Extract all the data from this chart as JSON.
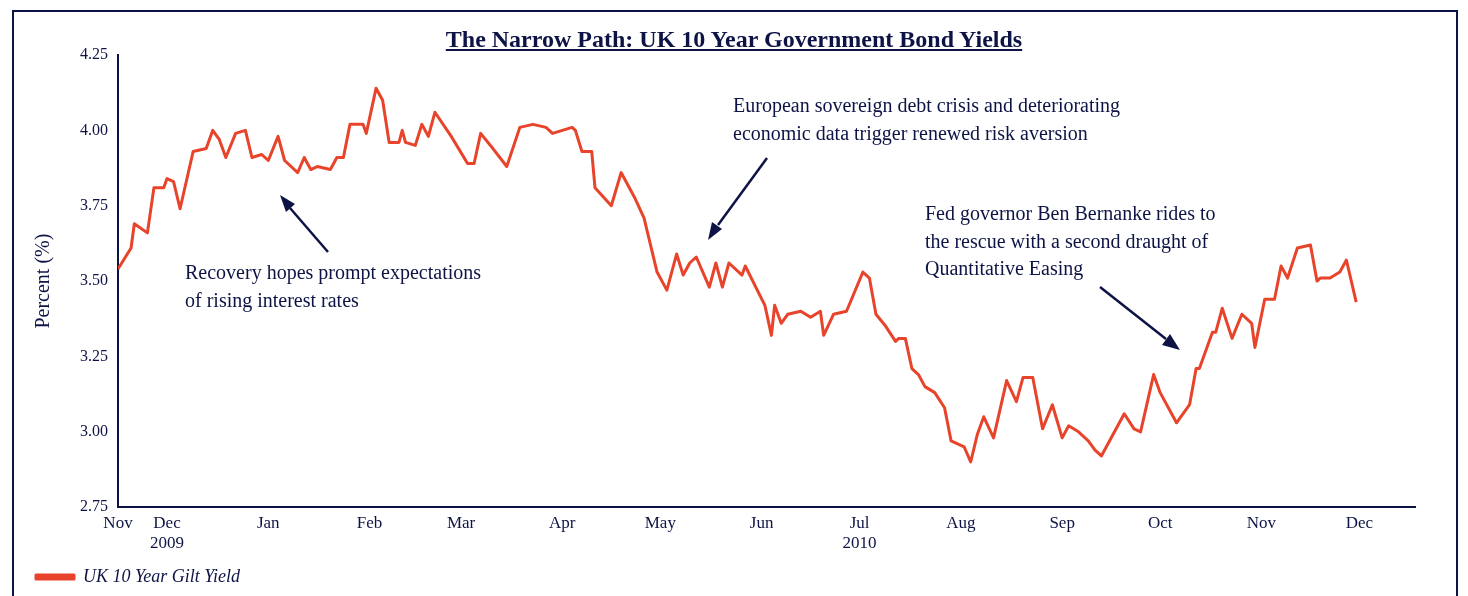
{
  "chart_data": {
    "type": "line",
    "title": "The Narrow Path: UK 10 Year Government Bond Yields",
    "ylabel": "Percent (%)",
    "xlim": [
      "2009-11-16",
      "2010-12-18"
    ],
    "xticks": [
      {
        "value": "2009-11-16",
        "label": "Nov"
      },
      {
        "value": "2009-12-01",
        "label": "Dec\n2009"
      },
      {
        "value": "2010-01-01",
        "label": "Jan"
      },
      {
        "value": "2010-02-01",
        "label": "Feb"
      },
      {
        "value": "2010-03-01",
        "label": "Mar"
      },
      {
        "value": "2010-04-01",
        "label": "Apr"
      },
      {
        "value": "2010-05-01",
        "label": "May"
      },
      {
        "value": "2010-06-01",
        "label": "Jun"
      },
      {
        "value": "2010-07-01",
        "label": "Jul\n2010"
      },
      {
        "value": "2010-08-01",
        "label": "Aug"
      },
      {
        "value": "2010-09-01",
        "label": "Sep"
      },
      {
        "value": "2010-10-01",
        "label": "Oct"
      },
      {
        "value": "2010-11-01",
        "label": "Nov"
      },
      {
        "value": "2010-12-01",
        "label": "Dec"
      }
    ],
    "ylim": [
      2.75,
      4.25
    ],
    "yticks": [
      {
        "value": 2.75,
        "label": "2.75"
      },
      {
        "value": 3,
        "label": "3.00"
      },
      {
        "value": 3.25,
        "label": "3.25"
      },
      {
        "value": 3.5,
        "label": "3.50"
      },
      {
        "value": 3.75,
        "label": "3.75"
      },
      {
        "value": 4,
        "label": "4.00"
      },
      {
        "value": 4.25,
        "label": "4.25"
      }
    ],
    "grid": false,
    "legend": "bottom left",
    "marker": "none",
    "line_style": "solid",
    "annotations": [
      "Recovery hopes prompt expectations\nof rising interest rates",
      "European sovereign debt crisis and deteriorating\neconomic data trigger renewed risk aversion",
      "Fed governor Ben Bernanke rides to\nthe rescue with a second draught of\nQuantitative Easing"
    ],
    "series": [
      {
        "name": "UK 10 Year Gilt Yield",
        "color": "#e8432b",
        "x": [
          "2009-11-16",
          "2009-11-20",
          "2009-11-21",
          "2009-11-25",
          "2009-11-27",
          "2009-11-30",
          "2009-12-01",
          "2009-12-03",
          "2009-12-05",
          "2009-12-09",
          "2009-12-13",
          "2009-12-15",
          "2009-12-17",
          "2009-12-19",
          "2009-12-22",
          "2009-12-25",
          "2009-12-27",
          "2009-12-30",
          "2010-01-01",
          "2010-01-04",
          "2010-01-06",
          "2010-01-10",
          "2010-01-12",
          "2010-01-14",
          "2010-01-16",
          "2010-01-20",
          "2010-01-22",
          "2010-01-24",
          "2010-01-26",
          "2010-01-30",
          "2010-01-31",
          "2010-02-03",
          "2010-02-05",
          "2010-02-07",
          "2010-02-10",
          "2010-02-11",
          "2010-02-12",
          "2010-02-15",
          "2010-02-17",
          "2010-02-19",
          "2010-02-21",
          "2010-02-26",
          "2010-03-03",
          "2010-03-05",
          "2010-03-07",
          "2010-03-10",
          "2010-03-15",
          "2010-03-19",
          "2010-03-23",
          "2010-03-27",
          "2010-03-29",
          "2010-04-01",
          "2010-04-04",
          "2010-04-05",
          "2010-04-07",
          "2010-04-10",
          "2010-04-11",
          "2010-04-16",
          "2010-04-19",
          "2010-04-23",
          "2010-04-26",
          "2010-04-30",
          "2010-05-03",
          "2010-05-06",
          "2010-05-08",
          "2010-05-10",
          "2010-05-12",
          "2010-05-16",
          "2010-05-18",
          "2010-05-20",
          "2010-05-22",
          "2010-05-26",
          "2010-05-27",
          "2010-06-02",
          "2010-06-04",
          "2010-06-05",
          "2010-06-07",
          "2010-06-09",
          "2010-06-13",
          "2010-06-16",
          "2010-06-19",
          "2010-06-20",
          "2010-06-23",
          "2010-06-27",
          "2010-07-02",
          "2010-07-04",
          "2010-07-06",
          "2010-07-09",
          "2010-07-12",
          "2010-07-13",
          "2010-07-15",
          "2010-07-17",
          "2010-07-19",
          "2010-07-21",
          "2010-07-24",
          "2010-07-27",
          "2010-07-29",
          "2010-08-02",
          "2010-08-04",
          "2010-08-06",
          "2010-08-08",
          "2010-08-11",
          "2010-08-15",
          "2010-08-18",
          "2010-08-20",
          "2010-08-23",
          "2010-08-26",
          "2010-08-29",
          "2010-09-01",
          "2010-09-03",
          "2010-09-06",
          "2010-09-09",
          "2010-09-11",
          "2010-09-13",
          "2010-09-20",
          "2010-09-23",
          "2010-09-25",
          "2010-09-29",
          "2010-10-01",
          "2010-10-06",
          "2010-10-10",
          "2010-10-12",
          "2010-10-13",
          "2010-10-17",
          "2010-10-18",
          "2010-10-20",
          "2010-10-23",
          "2010-10-26",
          "2010-10-29",
          "2010-10-30",
          "2010-11-02",
          "2010-11-05",
          "2010-11-07",
          "2010-11-09",
          "2010-11-12",
          "2010-11-16",
          "2010-11-18",
          "2010-11-19",
          "2010-11-22",
          "2010-11-25",
          "2010-11-27",
          "2010-11-30"
        ],
        "values": [
          3.54,
          3.61,
          3.69,
          3.66,
          3.81,
          3.81,
          3.84,
          3.83,
          3.74,
          3.93,
          3.94,
          4.0,
          3.97,
          3.91,
          3.99,
          4.0,
          3.91,
          3.92,
          3.9,
          3.98,
          3.9,
          3.86,
          3.91,
          3.87,
          3.88,
          3.87,
          3.91,
          3.91,
          4.02,
          4.02,
          3.99,
          4.14,
          4.1,
          3.96,
          3.96,
          4.0,
          3.96,
          3.95,
          4.02,
          3.98,
          4.06,
          3.98,
          3.89,
          3.89,
          3.99,
          3.95,
          3.88,
          4.01,
          4.02,
          4.01,
          3.99,
          4.0,
          4.01,
          4.0,
          3.93,
          3.93,
          3.81,
          3.75,
          3.86,
          3.78,
          3.71,
          3.53,
          3.47,
          3.59,
          3.52,
          3.56,
          3.58,
          3.48,
          3.56,
          3.48,
          3.56,
          3.52,
          3.55,
          3.42,
          3.32,
          3.42,
          3.36,
          3.39,
          3.4,
          3.38,
          3.4,
          3.32,
          3.39,
          3.4,
          3.53,
          3.51,
          3.39,
          3.35,
          3.3,
          3.31,
          3.31,
          3.21,
          3.19,
          3.15,
          3.13,
          3.08,
          2.97,
          2.95,
          2.9,
          2.99,
          3.05,
          2.98,
          3.17,
          3.1,
          3.18,
          3.18,
          3.01,
          3.09,
          2.98,
          3.02,
          3.0,
          2.97,
          2.94,
          2.92,
          3.06,
          3.01,
          3.0,
          3.19,
          3.13,
          3.03,
          3.09,
          3.21,
          3.21,
          3.33,
          3.33,
          3.41,
          3.31,
          3.39,
          3.36,
          3.28,
          3.44,
          3.44,
          3.55,
          3.51,
          3.61,
          3.62,
          3.5,
          3.51,
          3.51,
          3.53,
          3.57,
          3.43
        ]
      }
    ]
  }
}
